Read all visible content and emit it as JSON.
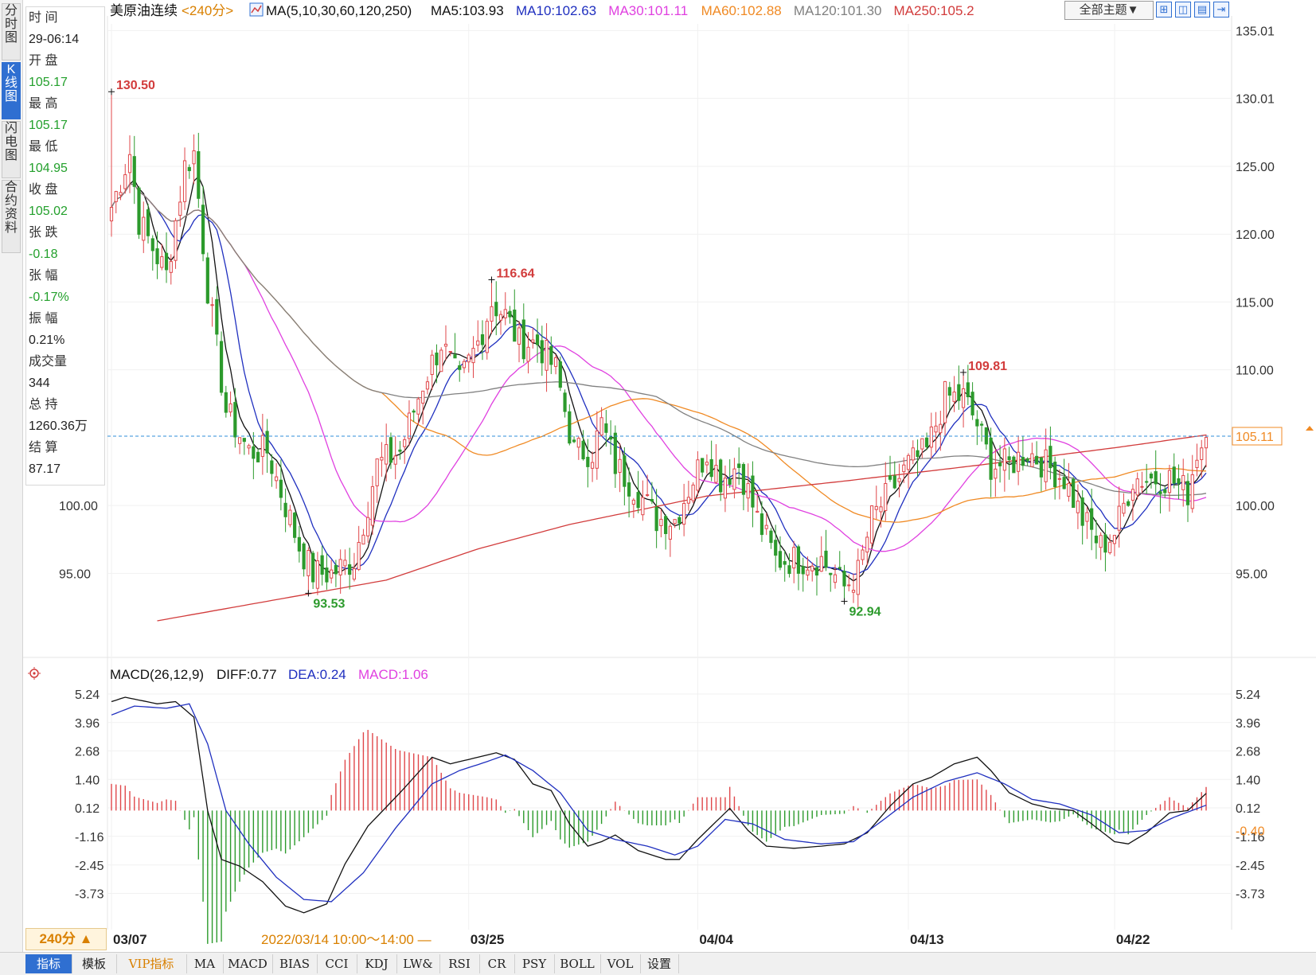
{
  "window": {
    "instrument": "美原油连续",
    "period_tag": "<240分>",
    "ma_spec": "MA(5,10,30,60,120,250)",
    "ma_values": [
      {
        "text": "MA5:103.93",
        "color": "#111111"
      },
      {
        "text": "MA10:102.63",
        "color": "#1f2fbf"
      },
      {
        "text": "MA30:101.11",
        "color": "#e040e0"
      },
      {
        "text": "MA60:102.88",
        "color": "#f08a24"
      },
      {
        "text": "MA120:101.30",
        "color": "#808080"
      },
      {
        "text": "MA250:105.2",
        "color": "#d23c3c"
      }
    ],
    "theme_button": "全部主题▼",
    "icon_buttons": [
      "grid-icon",
      "split-icon",
      "panel-icon",
      "expand-icon"
    ]
  },
  "sidebar": {
    "tabs": [
      {
        "label": "分时图",
        "active": false
      },
      {
        "label": "K线图",
        "active": true
      },
      {
        "label": "闪电图",
        "active": false
      },
      {
        "label": "合约资料",
        "active": false
      }
    ]
  },
  "info_panel": [
    {
      "label": "时 间",
      "value": "29-06:14",
      "value_color": "#222222"
    },
    {
      "label": "开 盘",
      "value": "105.17",
      "value_color": "#23a02c"
    },
    {
      "label": "最 高",
      "value": "105.17",
      "value_color": "#23a02c"
    },
    {
      "label": "最 低",
      "value": "104.95",
      "value_color": "#23a02c"
    },
    {
      "label": "收 盘",
      "value": "105.02",
      "value_color": "#23a02c"
    },
    {
      "label": "张 跌",
      "value": "-0.18",
      "value_color": "#23a02c"
    },
    {
      "label": "张 幅",
      "value": "-0.17%",
      "value_color": "#23a02c"
    },
    {
      "label": "振 幅",
      "value": "0.21%",
      "value_color": "#222222"
    },
    {
      "label": "成交量",
      "value": "344",
      "value_color": "#222222"
    },
    {
      "label": "总 持",
      "value": "1260.36万",
      "value_color": "#222222"
    },
    {
      "label": "结 算",
      "value": "87.17",
      "value_color": "#222222"
    }
  ],
  "macd_header": {
    "name": "MACD(26,12,9)",
    "diff": "DIFF:0.77",
    "dea": "DEA:0.24",
    "macd": "MACD:1.06"
  },
  "bottom": {
    "period_button": "240分 ▲",
    "cursor_time": "2022/03/14 10:00～14:00 —",
    "tabs": [
      {
        "label": "指标",
        "active": true,
        "vip": false
      },
      {
        "label": "模板",
        "active": false,
        "vip": false
      },
      {
        "label": "VIP指标",
        "active": false,
        "vip": true
      },
      {
        "label": "MA",
        "active": false,
        "vip": false
      },
      {
        "label": "MACD",
        "active": false,
        "vip": false
      },
      {
        "label": "BIAS",
        "active": false,
        "vip": false
      },
      {
        "label": "CCI",
        "active": false,
        "vip": false
      },
      {
        "label": "KDJ",
        "active": false,
        "vip": false
      },
      {
        "label": "LW&",
        "active": false,
        "vip": false
      },
      {
        "label": "RSI",
        "active": false,
        "vip": false
      },
      {
        "label": "CR",
        "active": false,
        "vip": false
      },
      {
        "label": "PSY",
        "active": false,
        "vip": false
      },
      {
        "label": "BOLL",
        "active": false,
        "vip": false
      },
      {
        "label": "VOL",
        "active": false,
        "vip": false
      },
      {
        "label": "设置",
        "active": false,
        "vip": false
      }
    ]
  },
  "chart_data": [
    {
      "type": "candlestick",
      "price_axis": {
        "ticks": [
          "135.01",
          "130.01",
          "125.00",
          "120.00",
          "115.00",
          "110.00",
          "100.00",
          "95.00"
        ],
        "tick_values": [
          135.01,
          130.01,
          125.0,
          120.0,
          115.0,
          110.0,
          100.0,
          95.0
        ],
        "ylim": [
          91.5,
          135.5
        ]
      },
      "date_labels": [
        {
          "label": "03/07",
          "index": 0
        },
        {
          "label": "03/25",
          "index": 78
        },
        {
          "label": "04/04",
          "index": 128
        },
        {
          "label": "04/13",
          "index": 174
        },
        {
          "label": "04/22",
          "index": 219
        }
      ],
      "current_price": 105.11,
      "current_price_label": "105.11",
      "annotations": [
        {
          "text": "130.50",
          "index": 0,
          "value": 130.5,
          "kind": "high"
        },
        {
          "text": "93.53",
          "index": 43,
          "value": 93.53,
          "kind": "low"
        },
        {
          "text": "116.64",
          "index": 83,
          "value": 116.64,
          "kind": "high"
        },
        {
          "text": "92.94",
          "index": 160,
          "value": 92.94,
          "kind": "low"
        },
        {
          "text": "109.81",
          "index": 186,
          "value": 109.81,
          "kind": "high"
        }
      ],
      "candle_count": 240,
      "key_points": [
        [
          0,
          122
        ],
        [
          4,
          126
        ],
        [
          6,
          121
        ],
        [
          12,
          117
        ],
        [
          16,
          125
        ],
        [
          18,
          126
        ],
        [
          21,
          116
        ],
        [
          25,
          107
        ],
        [
          30,
          104
        ],
        [
          34,
          104
        ],
        [
          38,
          100
        ],
        [
          41,
          97
        ],
        [
          44,
          95
        ],
        [
          48,
          95
        ],
        [
          53,
          96
        ],
        [
          58,
          103
        ],
        [
          63,
          104
        ],
        [
          68,
          109
        ],
        [
          72,
          112
        ],
        [
          76,
          109
        ],
        [
          80,
          112
        ],
        [
          83,
          115
        ],
        [
          86,
          114
        ],
        [
          89,
          112
        ],
        [
          93,
          112
        ],
        [
          97,
          110
        ],
        [
          101,
          104
        ],
        [
          105,
          104
        ],
        [
          107,
          106
        ],
        [
          110,
          103
        ],
        [
          115,
          101
        ],
        [
          119,
          99
        ],
        [
          123,
          99
        ],
        [
          127,
          102
        ],
        [
          130,
          104
        ],
        [
          133,
          102
        ],
        [
          137,
          103
        ],
        [
          141,
          99
        ],
        [
          145,
          96
        ],
        [
          151,
          96
        ],
        [
          155,
          96
        ],
        [
          160,
          94
        ],
        [
          163,
          95
        ],
        [
          166,
          99
        ],
        [
          170,
          101
        ],
        [
          174,
          103
        ],
        [
          178,
          104
        ],
        [
          182,
          108
        ],
        [
          186,
          108
        ],
        [
          189,
          106
        ],
        [
          192,
          103
        ],
        [
          196,
          103
        ],
        [
          200,
          104
        ],
        [
          204,
          103
        ],
        [
          208,
          102
        ],
        [
          212,
          99
        ],
        [
          216,
          97
        ],
        [
          219,
          98
        ],
        [
          223,
          102
        ],
        [
          227,
          102
        ],
        [
          231,
          102
        ],
        [
          235,
          101
        ],
        [
          237,
          104
        ],
        [
          239,
          105.02
        ]
      ],
      "ma_periods": [
        5,
        10,
        30,
        60,
        120,
        250
      ],
      "ma_colors": [
        "#111111",
        "#1f2fbf",
        "#e040e0",
        "#f08a24",
        "#808080",
        "#d23c3c"
      ],
      "ma250_points": [
        [
          10,
          91.5
        ],
        [
          40,
          93.3
        ],
        [
          60,
          94.5
        ],
        [
          80,
          96.8
        ],
        [
          100,
          98.6
        ],
        [
          130,
          100.7
        ],
        [
          160,
          101.8
        ],
        [
          190,
          103.0
        ],
        [
          220,
          104.3
        ],
        [
          239,
          105.2
        ]
      ],
      "up_color": "#e0474a",
      "down_color": "#2c9a2c"
    },
    {
      "type": "macd",
      "axis_ticks": [
        "5.24",
        "3.96",
        "2.68",
        "1.40",
        "0.12",
        "-1.16",
        "-2.45",
        "-3.73"
      ],
      "axis_values": [
        5.24,
        3.96,
        2.68,
        1.4,
        0.12,
        -1.16,
        -2.45,
        -3.73
      ],
      "right_extra_label": "-0.40",
      "ylim": [
        -5.0,
        5.6
      ],
      "diff_points": [
        [
          0,
          4.9
        ],
        [
          3,
          5.1
        ],
        [
          10,
          4.8
        ],
        [
          14,
          4.9
        ],
        [
          18,
          4.2
        ],
        [
          21,
          0.0
        ],
        [
          24,
          -2.2
        ],
        [
          28,
          -2.5
        ],
        [
          33,
          -3.2
        ],
        [
          38,
          -4.3
        ],
        [
          42,
          -4.6
        ],
        [
          47,
          -4.2
        ],
        [
          51,
          -2.4
        ],
        [
          56,
          -0.7
        ],
        [
          63,
          0.8
        ],
        [
          70,
          2.4
        ],
        [
          74,
          2.1
        ],
        [
          80,
          2.4
        ],
        [
          84,
          2.6
        ],
        [
          88,
          2.3
        ],
        [
          92,
          1.2
        ],
        [
          96,
          0.9
        ],
        [
          100,
          -0.6
        ],
        [
          104,
          -1.6
        ],
        [
          107,
          -1.4
        ],
        [
          110,
          -1.1
        ],
        [
          115,
          -1.8
        ],
        [
          121,
          -2.2
        ],
        [
          124,
          -2.2
        ],
        [
          128,
          -1.3
        ],
        [
          132,
          -0.5
        ],
        [
          135,
          0.1
        ],
        [
          139,
          -0.9
        ],
        [
          143,
          -1.6
        ],
        [
          149,
          -1.7
        ],
        [
          155,
          -1.6
        ],
        [
          160,
          -1.5
        ],
        [
          165,
          -1.0
        ],
        [
          170,
          0.2
        ],
        [
          175,
          1.2
        ],
        [
          179,
          1.5
        ],
        [
          184,
          2.1
        ],
        [
          189,
          2.4
        ],
        [
          192,
          1.8
        ],
        [
          196,
          0.8
        ],
        [
          201,
          0.3
        ],
        [
          205,
          0.1
        ],
        [
          210,
          0.0
        ],
        [
          214,
          -0.6
        ],
        [
          219,
          -1.4
        ],
        [
          222,
          -1.5
        ],
        [
          226,
          -1.0
        ],
        [
          231,
          -0.1
        ],
        [
          235,
          0.0
        ],
        [
          239,
          0.77
        ]
      ],
      "dea_points": [
        [
          0,
          4.3
        ],
        [
          5,
          4.7
        ],
        [
          12,
          4.6
        ],
        [
          17,
          4.8
        ],
        [
          21,
          3.0
        ],
        [
          25,
          0.0
        ],
        [
          30,
          -1.5
        ],
        [
          36,
          -3.0
        ],
        [
          42,
          -4.0
        ],
        [
          48,
          -4.1
        ],
        [
          55,
          -2.8
        ],
        [
          62,
          -0.8
        ],
        [
          70,
          1.2
        ],
        [
          76,
          1.8
        ],
        [
          82,
          2.2
        ],
        [
          86,
          2.5
        ],
        [
          92,
          1.8
        ],
        [
          98,
          0.8
        ],
        [
          104,
          -0.9
        ],
        [
          110,
          -1.3
        ],
        [
          117,
          -1.6
        ],
        [
          123,
          -2.0
        ],
        [
          128,
          -1.6
        ],
        [
          134,
          -0.4
        ],
        [
          140,
          -0.6
        ],
        [
          147,
          -1.3
        ],
        [
          155,
          -1.5
        ],
        [
          162,
          -1.4
        ],
        [
          168,
          -0.5
        ],
        [
          175,
          0.6
        ],
        [
          182,
          1.3
        ],
        [
          189,
          1.7
        ],
        [
          195,
          1.2
        ],
        [
          201,
          0.5
        ],
        [
          207,
          0.3
        ],
        [
          214,
          -0.2
        ],
        [
          220,
          -1.0
        ],
        [
          226,
          -0.9
        ],
        [
          232,
          -0.3
        ],
        [
          239,
          0.24
        ]
      ],
      "hist_up_color": "#e0474a",
      "hist_down_color": "#2c9a2c",
      "diff_color": "#111111",
      "dea_color": "#1f2fbf"
    }
  ]
}
